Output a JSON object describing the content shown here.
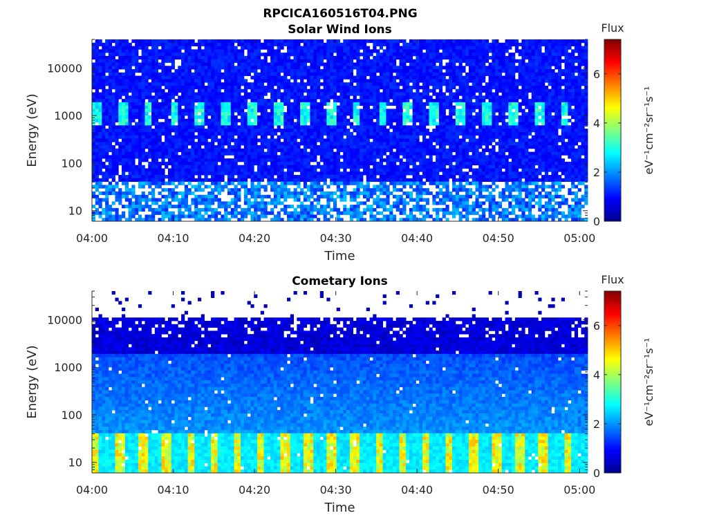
{
  "figure": {
    "title": "RPCICA160516T04.PNG"
  },
  "chart_data": [
    {
      "type": "heatmap",
      "panel": "top",
      "title": "Solar Wind Ions",
      "xlabel": "Time",
      "ylabel": "Energy (eV)",
      "x_ticks": [
        "04:00",
        "04:10",
        "04:20",
        "04:30",
        "04:40",
        "04:50",
        "05:00"
      ],
      "xlim": [
        "04:00",
        "05:01"
      ],
      "y_scale": "log",
      "y_ticks": [
        10,
        100,
        1000,
        10000
      ],
      "y_tick_labels": [
        "10",
        "100",
        "1000",
        "10000"
      ],
      "ylim": [
        6,
        40000
      ],
      "colorbar": {
        "title": "Flux",
        "label": "eV⁻¹cm⁻²sr⁻¹s⁻¹",
        "ticks": [
          0,
          2,
          4,
          6
        ],
        "range": [
          0,
          7.4
        ],
        "colormap": "jet"
      },
      "features": {
        "background_level": 0.8,
        "periodic_band": {
          "energy_range_eV": [
            600,
            2000
          ],
          "peak_level": 3.0,
          "period_minutes": 3.2
        },
        "low_energy_gaps_below_eV": 40
      }
    },
    {
      "type": "heatmap",
      "panel": "bottom",
      "title": "Cometary Ions",
      "xlabel": "Time",
      "ylabel": "Energy (eV)",
      "x_ticks": [
        "04:00",
        "04:10",
        "04:20",
        "04:30",
        "04:40",
        "04:50",
        "05:00"
      ],
      "xlim": [
        "04:00",
        "05:01"
      ],
      "y_scale": "log",
      "y_ticks": [
        10,
        100,
        1000,
        10000
      ],
      "y_tick_labels": [
        "10",
        "100",
        "1000",
        "10000"
      ],
      "ylim": [
        6,
        40000
      ],
      "colorbar": {
        "title": "Flux",
        "label": "eV⁻¹cm⁻²sr⁻¹s⁻¹",
        "ticks": [
          0,
          2,
          4,
          6
        ],
        "range": [
          0,
          7.4
        ],
        "colormap": "jet"
      },
      "features": {
        "upper_energy_cutoff_eV": 11000,
        "low_energy_band": {
          "energy_range_eV": [
            6,
            40
          ],
          "peak_level": 4.5,
          "max_level": 5.6,
          "period_minutes": 2.9
        },
        "background_level": 1.0
      }
    }
  ]
}
